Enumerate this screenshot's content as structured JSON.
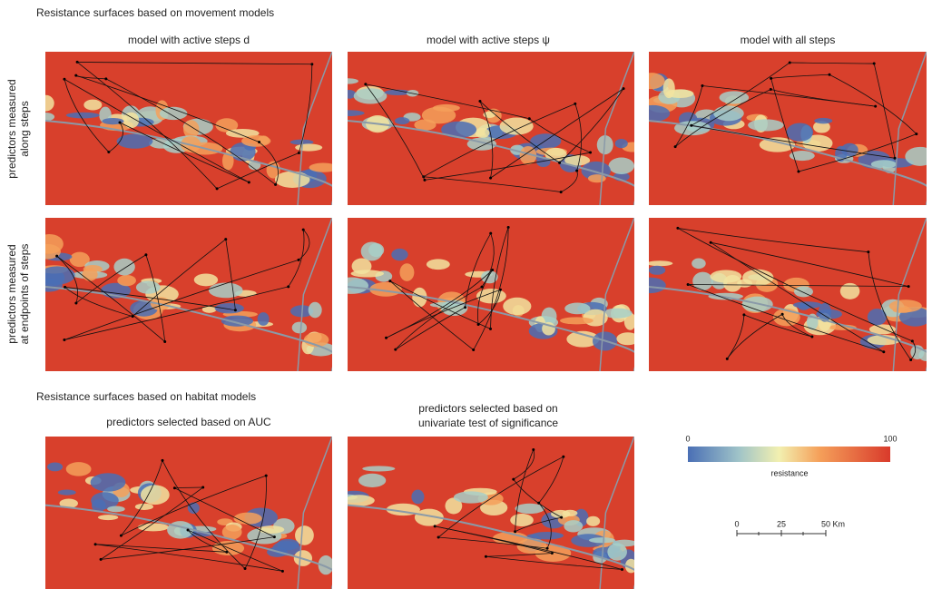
{
  "header": {
    "title": "Resistance surfaces based on movement models"
  },
  "columns": [
    "model with active steps d",
    "model with active steps ψ",
    "model with all steps"
  ],
  "rows": [
    [
      "predictors measured",
      "along steps"
    ],
    [
      "predictors measured",
      "at endpoints of steps"
    ]
  ],
  "habitat_section": {
    "title": "Resistance surfaces based on habitat models",
    "columns": [
      [
        "predictors selected based on AUC"
      ],
      [
        "predictors selected based on",
        "univariate test of significance"
      ]
    ]
  },
  "legend": {
    "min": "0",
    "max": "100",
    "label": "resistance"
  },
  "scale_bar": {
    "labels": [
      "0",
      "25",
      "50 Km"
    ]
  }
}
